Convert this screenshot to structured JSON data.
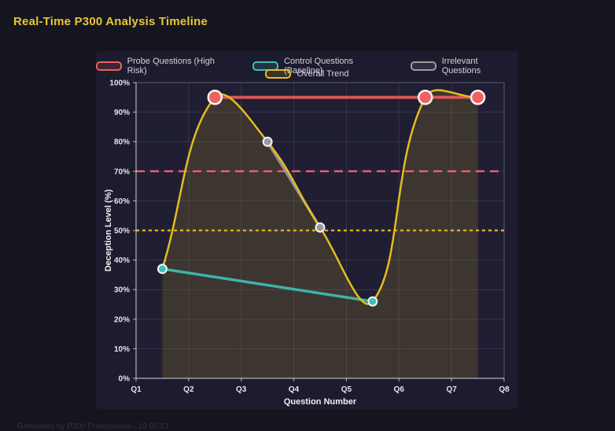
{
  "header": {
    "title": "Real-Time P300 Analysis Timeline"
  },
  "footer": {
    "text": "Generated by P300 Professional - 19:05:13"
  },
  "colors": {
    "page_bg": "#151520",
    "card_bg": "#1d1c2e",
    "plot_bg": "#1f1e33",
    "grid": "rgba(255,255,255,0.10)",
    "axis_line": "rgba(255,255,255,0.55)",
    "border": "rgba(255,255,255,0.20)",
    "tick_label": "#e4e4ec",
    "title": "#eac438",
    "point_border": "#f4f4f6"
  },
  "chart_data": {
    "type": "line",
    "title": "Real-Time P300 Analysis Timeline",
    "xlabel": "Question Number",
    "ylabel": "Deception Level (%)",
    "x_tick_labels": [
      "Q1",
      "Q2",
      "Q3",
      "Q4",
      "Q5",
      "Q6",
      "Q7",
      "Q8"
    ],
    "x_range": [
      1,
      8
    ],
    "ylim": [
      0,
      100
    ],
    "y_tick_labels": [
      "0%",
      "10%",
      "20%",
      "30%",
      "40%",
      "50%",
      "60%",
      "70%",
      "80%",
      "90%",
      "100%"
    ],
    "grid": true,
    "legend_position": "top",
    "series": [
      {
        "name": "Probe Questions (High Risk)",
        "color": "#f2605f",
        "smooth": false,
        "line_width": 4,
        "line_opacity": 0.85,
        "point_radius": 8.5,
        "point_border_width": 2.5,
        "fill": false,
        "points": [
          {
            "x": 2.5,
            "y": 95
          },
          {
            "x": 6.5,
            "y": 95
          },
          {
            "x": 7.5,
            "y": 95
          }
        ]
      },
      {
        "name": "Control Questions (Baseline)",
        "color": "#3ec1b6",
        "smooth": false,
        "line_width": 3.5,
        "line_opacity": 0.9,
        "point_radius": 5.5,
        "point_border_width": 2,
        "fill": false,
        "points": [
          {
            "x": 1.5,
            "y": 37
          },
          {
            "x": 5.5,
            "y": 26
          }
        ]
      },
      {
        "name": "Irrelevant Questions",
        "color": "#9a9aa4",
        "smooth": false,
        "line_width": 3.5,
        "line_opacity": 0.9,
        "point_radius": 5.5,
        "point_border_width": 2,
        "fill": false,
        "points": [
          {
            "x": 3.5,
            "y": 80
          },
          {
            "x": 4.5,
            "y": 51
          }
        ]
      },
      {
        "name": "Overall Trend",
        "color": "#e3bd1f",
        "smooth": true,
        "line_width": 2.5,
        "line_opacity": 1,
        "point_radius": 0,
        "point_border_width": 0,
        "fill": true,
        "fill_opacity": 0.15,
        "points": [
          {
            "x": 1.5,
            "y": 37
          },
          {
            "x": 2.5,
            "y": 95
          },
          {
            "x": 3.5,
            "y": 80
          },
          {
            "x": 4.5,
            "y": 51
          },
          {
            "x": 5.5,
            "y": 26
          },
          {
            "x": 6.5,
            "y": 95
          },
          {
            "x": 7.5,
            "y": 95
          }
        ]
      }
    ],
    "reference_lines": [
      {
        "y": 70,
        "color": "#ef5b68",
        "style": "dashed",
        "width": 2.5
      },
      {
        "y": 50,
        "color": "#dcab15",
        "style": "dotted",
        "width": 2.5
      }
    ]
  }
}
